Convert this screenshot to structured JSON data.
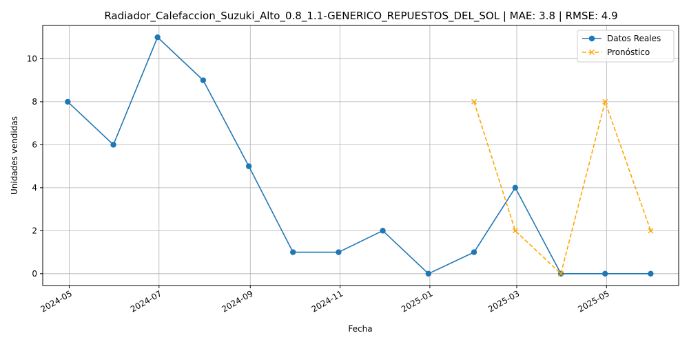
{
  "chart_data": {
    "type": "line",
    "title": "Radiador_Calefaccion_Suzuki_Alto_0.8_1.1-GENERICO_REPUESTOS_DEL_SOL | MAE: 3.8 | RMSE: 4.9",
    "xlabel": "Fecha",
    "ylabel": "Unidades vendidas",
    "x_ticks": [
      "2024-05",
      "2024-07",
      "2024-09",
      "2024-11",
      "2025-01",
      "2025-03",
      "2025-05"
    ],
    "y_ticks": [
      0,
      2,
      4,
      6,
      8,
      10
    ],
    "xlim": [
      "2024-04-13",
      "2025-06-19"
    ],
    "ylim": [
      -0.55,
      11.55
    ],
    "grid": true,
    "legend_position": "top-right",
    "series": [
      {
        "name": "Datos Reales",
        "color": "#1f77b4",
        "linestyle": "solid",
        "marker": "circle",
        "x": [
          "2024-04-30",
          "2024-05-31",
          "2024-06-30",
          "2024-07-31",
          "2024-08-31",
          "2024-09-30",
          "2024-10-31",
          "2024-11-30",
          "2024-12-31",
          "2025-01-31",
          "2025-02-28",
          "2025-03-31",
          "2025-04-30",
          "2025-05-31"
        ],
        "y": [
          8,
          6,
          11,
          9,
          5,
          1,
          1,
          2,
          0,
          1,
          4,
          0,
          0,
          0
        ]
      },
      {
        "name": "Pronóstico",
        "color": "#ffa500",
        "linestyle": "dashed",
        "marker": "x",
        "x": [
          "2025-01-31",
          "2025-02-28",
          "2025-03-31",
          "2025-04-30",
          "2025-05-31"
        ],
        "y": [
          8,
          2,
          0,
          8,
          2
        ]
      }
    ]
  }
}
